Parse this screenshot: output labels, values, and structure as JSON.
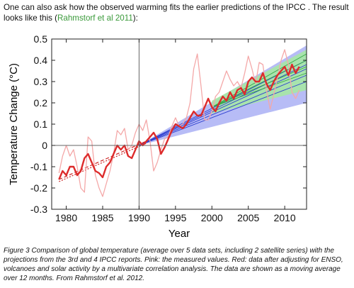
{
  "intro": {
    "text_before": "One can also ask how the observed warming fits the earlier predictions of the IPCC . The result looks like this (",
    "link": "Rahmstorf et al 2011",
    "text_after": "):"
  },
  "caption": "Figure 3 Comparison of global temperature (average over 5 data sets, including 2 satellite series) with the projections from the 3rd and 4 IPCC reports. Pink: the measured values. Red: data after adjusting for ENSO, volcanoes and solar activity by a multivariate correlation analysis. The data are shown as a moving average over 12 months. From Rahmstorf et al. 2012.",
  "colors": {
    "measured": "#f4a8a8",
    "adjusted": "#dd2b2b",
    "ipcc_ar3_band": "#aab0f5",
    "ipcc_ar4_band": "#a6eaa0",
    "trend": "#cc2222",
    "projections_blue": "#3040d0",
    "projections_green": "#33aa44"
  },
  "chart_data": {
    "type": "line",
    "xlabel": "Year",
    "ylabel": "Temperature Change (°C)",
    "xlim": [
      1978,
      2013
    ],
    "ylim": [
      -0.3,
      0.5
    ],
    "xticks": [
      1980,
      1985,
      1990,
      1995,
      2000,
      2005,
      2010
    ],
    "yticks": [
      -0.3,
      -0.2,
      -0.1,
      0,
      0.1,
      0.2,
      0.3,
      0.4,
      0.5
    ],
    "ytick_labels": [
      "-0.3",
      "-0.2",
      "-0.1",
      "0",
      "0.1",
      "0.2",
      "0.3",
      "0.4",
      "0.5"
    ],
    "reference_lines": {
      "vertical_x": 1990,
      "horizontal_y": 0
    },
    "series": [
      {
        "key": "measured",
        "x": [
          1979.0,
          1979.5,
          1980.0,
          1980.5,
          1981.0,
          1981.5,
          1982.0,
          1982.5,
          1983.0,
          1983.5,
          1984.0,
          1984.5,
          1985.0,
          1985.5,
          1986.0,
          1986.5,
          1987.0,
          1987.5,
          1988.0,
          1988.5,
          1989.0,
          1989.5,
          1990.0,
          1990.5,
          1991.0,
          1991.5,
          1992.0,
          1992.5,
          1993.0,
          1993.5,
          1994.0,
          1994.5,
          1995.0,
          1995.5,
          1996.0,
          1996.5,
          1997.0,
          1997.5,
          1998.0,
          1998.5,
          1999.0,
          1999.5,
          2000.0,
          2000.5,
          2001.0,
          2001.5,
          2002.0,
          2002.5,
          2003.0,
          2003.5,
          2004.0,
          2004.5,
          2005.0,
          2005.5,
          2006.0,
          2006.5,
          2007.0,
          2007.5,
          2008.0,
          2008.5,
          2009.0,
          2009.5,
          2010.0,
          2010.5,
          2011.0,
          2011.5,
          2012.0
        ],
        "y": [
          -0.13,
          -0.05,
          0.0,
          -0.05,
          -0.02,
          -0.1,
          -0.2,
          -0.22,
          0.04,
          0.02,
          -0.14,
          -0.2,
          -0.24,
          -0.18,
          -0.12,
          -0.04,
          0.07,
          0.05,
          0.08,
          -0.02,
          0.0,
          0.06,
          0.1,
          0.07,
          0.12,
          0.02,
          -0.12,
          -0.08,
          -0.02,
          0.03,
          0.04,
          0.09,
          0.13,
          0.09,
          0.1,
          0.13,
          0.2,
          0.36,
          0.43,
          0.28,
          0.12,
          0.12,
          0.16,
          0.23,
          0.25,
          0.3,
          0.35,
          0.31,
          0.28,
          0.3,
          0.27,
          0.34,
          0.42,
          0.36,
          0.29,
          0.39,
          0.38,
          0.26,
          0.17,
          0.24,
          0.32,
          0.4,
          0.45,
          0.38,
          0.25,
          0.22,
          0.26
        ]
      },
      {
        "key": "adjusted",
        "x": [
          1979.0,
          1979.5,
          1980.0,
          1980.5,
          1981.0,
          1981.5,
          1982.0,
          1982.5,
          1983.0,
          1983.5,
          1984.0,
          1984.5,
          1985.0,
          1985.5,
          1986.0,
          1986.5,
          1987.0,
          1987.5,
          1988.0,
          1988.5,
          1989.0,
          1989.5,
          1990.0,
          1990.5,
          1991.0,
          1991.5,
          1992.0,
          1992.5,
          1993.0,
          1993.5,
          1994.0,
          1994.5,
          1995.0,
          1995.5,
          1996.0,
          1996.5,
          1997.0,
          1997.5,
          1998.0,
          1998.5,
          1999.0,
          1999.5,
          2000.0,
          2000.5,
          2001.0,
          2001.5,
          2002.0,
          2002.5,
          2003.0,
          2003.5,
          2004.0,
          2004.5,
          2005.0,
          2005.5,
          2006.0,
          2006.5,
          2007.0,
          2007.5,
          2008.0,
          2008.5,
          2009.0,
          2009.5,
          2010.0,
          2010.5,
          2011.0,
          2011.5,
          2012.0
        ],
        "y": [
          -0.16,
          -0.12,
          -0.14,
          -0.1,
          -0.1,
          -0.14,
          -0.12,
          -0.06,
          -0.04,
          -0.08,
          -0.12,
          -0.13,
          -0.15,
          -0.1,
          -0.08,
          -0.04,
          0.0,
          -0.02,
          0.0,
          -0.05,
          -0.06,
          -0.02,
          0.02,
          0.0,
          0.02,
          0.04,
          0.06,
          0.03,
          -0.04,
          -0.01,
          0.03,
          0.07,
          0.1,
          0.09,
          0.08,
          0.1,
          0.13,
          0.16,
          0.14,
          0.14,
          0.18,
          0.22,
          0.18,
          0.16,
          0.2,
          0.23,
          0.21,
          0.25,
          0.22,
          0.26,
          0.27,
          0.24,
          0.3,
          0.32,
          0.3,
          0.3,
          0.34,
          0.29,
          0.26,
          0.3,
          0.33,
          0.35,
          0.37,
          0.33,
          0.38,
          0.34,
          0.37
        ]
      }
    ],
    "trend_lines": [
      {
        "x": [
          1979,
          1991
        ],
        "y": [
          -0.16,
          0.02
        ]
      },
      {
        "x": [
          1979,
          1991
        ],
        "y": [
          -0.17,
          0.01
        ]
      }
    ],
    "ipcc_ar3_band": {
      "x": [
        1990,
        2013
      ],
      "lower": [
        0.0,
        0.2
      ],
      "upper": [
        0.0,
        0.47
      ]
    },
    "ipcc_ar4_band": {
      "x": [
        2000,
        2013
      ],
      "lower": [
        0.15,
        0.26
      ],
      "upper": [
        0.21,
        0.45
      ]
    },
    "projections": [
      {
        "color": "projections_blue",
        "x": [
          1990,
          2013
        ],
        "y": [
          0.0,
          0.3
        ]
      },
      {
        "color": "projections_blue",
        "x": [
          1990,
          2013
        ],
        "y": [
          0.0,
          0.33
        ]
      },
      {
        "color": "projections_blue",
        "x": [
          1990,
          2013
        ],
        "y": [
          0.0,
          0.36
        ]
      },
      {
        "color": "projections_blue",
        "x": [
          1990,
          2013
        ],
        "y": [
          0.0,
          0.38
        ]
      },
      {
        "color": "projections_blue",
        "x": [
          1990,
          2013
        ],
        "y": [
          0.0,
          0.4
        ]
      },
      {
        "color": "projections_green",
        "x": [
          2000,
          2013
        ],
        "y": [
          0.18,
          0.34
        ]
      },
      {
        "color": "projections_green",
        "x": [
          2000,
          2013
        ],
        "y": [
          0.18,
          0.37
        ]
      },
      {
        "color": "projections_green",
        "x": [
          2000,
          2013
        ],
        "y": [
          0.18,
          0.4
        ]
      },
      {
        "color": "projections_green",
        "x": [
          2000,
          2013
        ],
        "y": [
          0.18,
          0.43
        ]
      }
    ]
  }
}
